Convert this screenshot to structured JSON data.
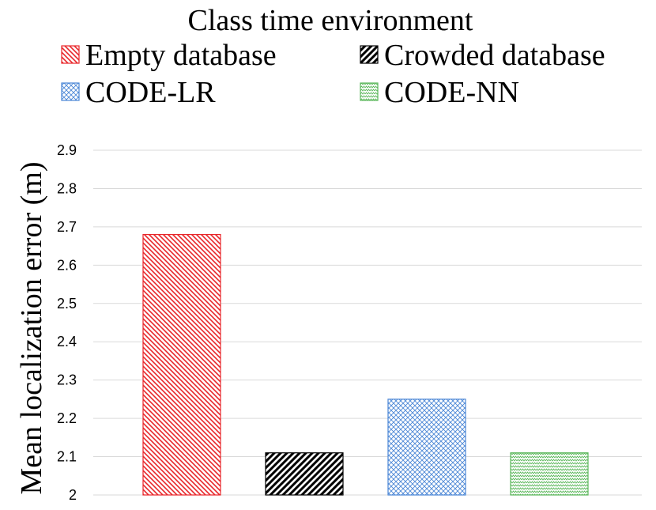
{
  "chart_data": {
    "type": "bar",
    "title": "Class time environment",
    "xlabel": "",
    "ylabel": "Mean localization error (m)",
    "ylim": [
      2,
      2.9
    ],
    "yticks": [
      "2",
      "2.1",
      "2.2",
      "2.3",
      "2.4",
      "2.5",
      "2.6",
      "2.7",
      "2.8",
      "2.9"
    ],
    "grid": true,
    "legend_position": "top",
    "series": [
      {
        "name": "Empty database",
        "value": 2.68,
        "color": "#e8262a",
        "pattern": "diagonal-down"
      },
      {
        "name": "Crowded database",
        "value": 2.11,
        "color": "#000000",
        "pattern": "diagonal-up-wide"
      },
      {
        "name": "CODE-LR",
        "value": 2.25,
        "color": "#4a86d6",
        "pattern": "crosshatch"
      },
      {
        "name": "CODE-NN",
        "value": 2.11,
        "color": "#5cb85c",
        "pattern": "zigzag"
      }
    ]
  }
}
